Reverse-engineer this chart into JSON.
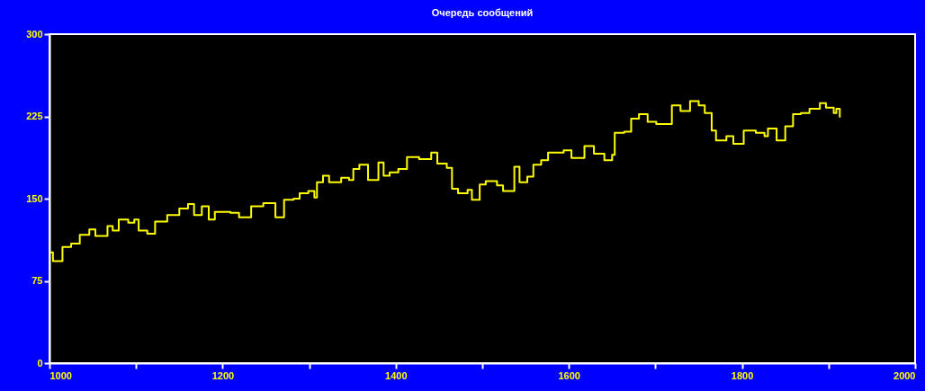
{
  "chart_data": {
    "type": "step",
    "title": "Очередь сообщений",
    "x": [
      1001,
      1004,
      1015,
      1025,
      1035,
      1046,
      1053,
      1067,
      1073,
      1080,
      1091,
      1098,
      1103,
      1113,
      1122,
      1136,
      1150,
      1160,
      1167,
      1176,
      1184,
      1191,
      1209,
      1219,
      1233,
      1247,
      1256,
      1261,
      1271,
      1282,
      1289,
      1299,
      1306,
      1309,
      1316,
      1323,
      1337,
      1346,
      1351,
      1358,
      1368,
      1380,
      1386,
      1393,
      1403,
      1413,
      1427,
      1441,
      1448,
      1459,
      1465,
      1472,
      1483,
      1488,
      1497,
      1504,
      1517,
      1524,
      1537,
      1543,
      1552,
      1559,
      1568,
      1576,
      1594,
      1603,
      1618,
      1629,
      1641,
      1650,
      1653,
      1664,
      1672,
      1681,
      1691,
      1701,
      1708,
      1719,
      1729,
      1740,
      1750,
      1757,
      1765,
      1770,
      1782,
      1790,
      1802,
      1816,
      1826,
      1830,
      1840,
      1850,
      1859,
      1868,
      1878,
      1890,
      1897,
      1906,
      1909,
      1913
    ],
    "series": [
      {
        "color": "#ffff00",
        "values": [
          101,
          93,
          106,
          109,
          117,
          122,
          116,
          125,
          121,
          131,
          128,
          131,
          121,
          118,
          129,
          135,
          141,
          145,
          135,
          143,
          131,
          138,
          137,
          133,
          143,
          146,
          146,
          133,
          149,
          150,
          155,
          157,
          151,
          165,
          171,
          165,
          169,
          167,
          177,
          181,
          167,
          183,
          171,
          174,
          177,
          188,
          186,
          192,
          182,
          178,
          159,
          155,
          158,
          149,
          163,
          166,
          162,
          157,
          179,
          165,
          170,
          181,
          185,
          192,
          194,
          187,
          198,
          191,
          185,
          190,
          210,
          211,
          223,
          227,
          220,
          218,
          218,
          235,
          230,
          239,
          235,
          228,
          212,
          203,
          207,
          200,
          212,
          210,
          207,
          214,
          203,
          216,
          227,
          228,
          232,
          237,
          233,
          228,
          232,
          224
        ]
      }
    ],
    "xlim": [
      1000,
      2000
    ],
    "xticks": [
      1000,
      {
        "value": 1100,
        "label": null
      },
      1200,
      {
        "value": 1300,
        "label": null
      },
      1400,
      {
        "value": 1500,
        "label": null
      },
      1600,
      {
        "value": 1700,
        "label": null
      },
      1800,
      {
        "value": 1900,
        "label": null
      },
      2000
    ],
    "ylim": [
      0,
      300
    ],
    "yticks": [
      0,
      75,
      150,
      225,
      300
    ]
  }
}
